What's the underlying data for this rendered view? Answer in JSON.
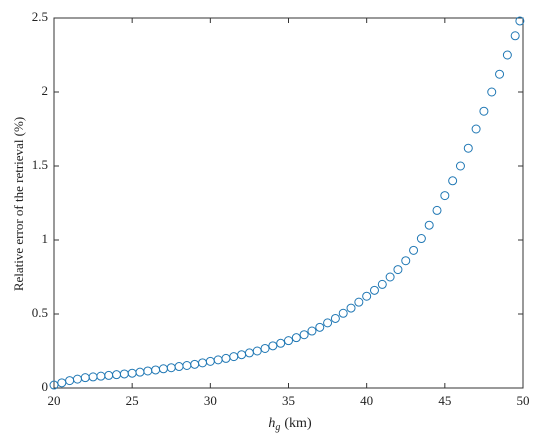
{
  "chart_data": {
    "type": "scatter",
    "x_label": {
      "symbol": "h",
      "subscript": "g",
      "unit": "(km)"
    },
    "y_label": "Relative error of the retrieval (%)",
    "color": "#1f77b4",
    "xlim": [
      20,
      50
    ],
    "xticks": [
      20,
      25,
      30,
      35,
      40,
      45,
      50
    ],
    "ylim": [
      0,
      2.5
    ],
    "yticks": [
      0,
      0.5,
      1,
      1.5,
      2,
      2.5
    ],
    "grid": false,
    "x": [
      20,
      20.5,
      21,
      21.5,
      22,
      22.5,
      23,
      23.5,
      24,
      24.5,
      25,
      25.5,
      26,
      26.5,
      27,
      27.5,
      28,
      28.5,
      29,
      29.5,
      30,
      30.5,
      31,
      31.5,
      32,
      32.5,
      33,
      33.5,
      34,
      34.5,
      35,
      35.5,
      36,
      36.5,
      37,
      37.5,
      38,
      38.5,
      39,
      39.5,
      40,
      40.5,
      41,
      41.5,
      42,
      42.5,
      43,
      43.5,
      44,
      44.5,
      45,
      45.5,
      46,
      46.5,
      47,
      47.5,
      48,
      48.5,
      49,
      49.5,
      49.8
    ],
    "values": [
      0.02,
      0.035,
      0.05,
      0.06,
      0.07,
      0.075,
      0.08,
      0.085,
      0.09,
      0.095,
      0.1,
      0.107,
      0.115,
      0.122,
      0.13,
      0.137,
      0.145,
      0.152,
      0.16,
      0.17,
      0.18,
      0.19,
      0.2,
      0.212,
      0.225,
      0.237,
      0.25,
      0.267,
      0.285,
      0.302,
      0.32,
      0.34,
      0.36,
      0.385,
      0.41,
      0.44,
      0.47,
      0.505,
      0.54,
      0.58,
      0.62,
      0.66,
      0.7,
      0.75,
      0.8,
      0.86,
      0.93,
      1.01,
      1.1,
      1.2,
      1.3,
      1.4,
      1.5,
      1.62,
      1.75,
      1.87,
      2.0,
      2.12,
      2.25,
      2.38,
      2.48
    ]
  }
}
